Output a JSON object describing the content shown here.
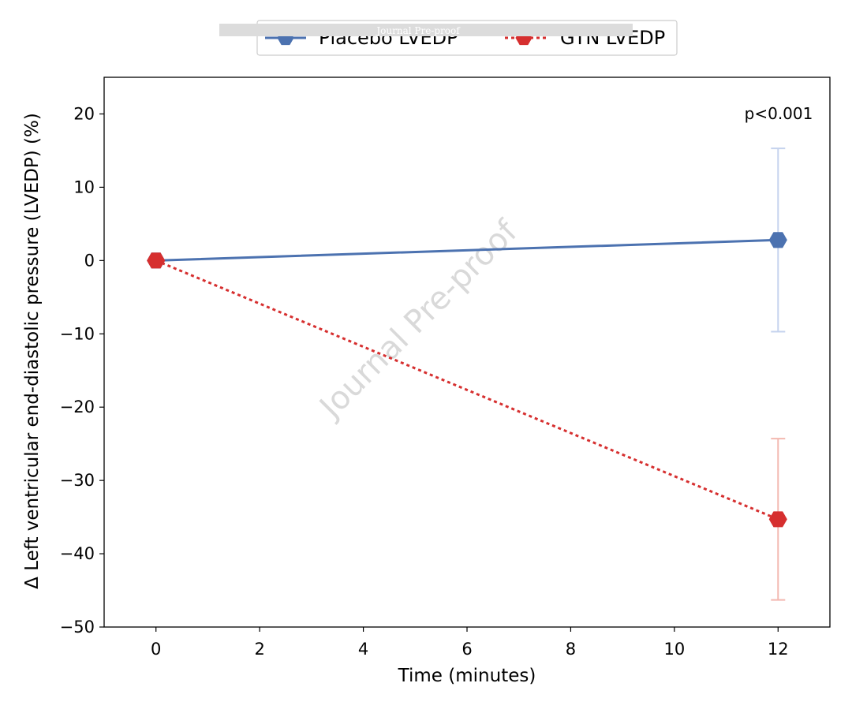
{
  "chart_data": {
    "type": "line",
    "xlabel": "Time (minutes)",
    "ylabel": "Δ Left ventricular end-diastolic pressure (LVEDP) (%)",
    "xlim": [
      -1,
      13
    ],
    "ylim": [
      -50,
      25
    ],
    "xticks": [
      0,
      2,
      4,
      6,
      8,
      10,
      12
    ],
    "yticks": [
      -50,
      -40,
      -30,
      -20,
      -10,
      0,
      10,
      20
    ],
    "grid": false,
    "legend_position": "top-center",
    "annotation": "p<0.001",
    "watermark": "Journal Pre-proof",
    "banner": "Journal Pre-proof",
    "series": [
      {
        "name": "Placebo LVEDP",
        "color": "#4c72b0",
        "errorbar_color": "#c5d3ee",
        "line_style": "solid",
        "marker": "hexagon",
        "x": [
          0,
          12
        ],
        "y": [
          0,
          2.8
        ],
        "error": [
          0,
          12.5
        ]
      },
      {
        "name": "GTN LVEDP",
        "color": "#d62f2f",
        "errorbar_color": "#f3b8b0",
        "line_style": "dotted",
        "marker": "hexagon",
        "x": [
          0,
          12
        ],
        "y": [
          0,
          -35.3
        ],
        "error": [
          0,
          11
        ]
      }
    ]
  }
}
